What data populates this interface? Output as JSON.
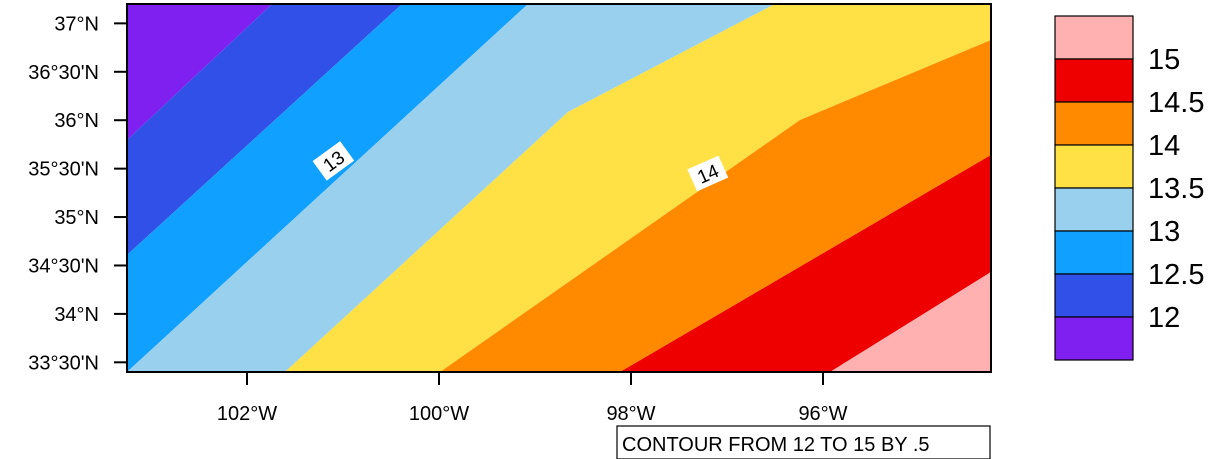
{
  "map": {
    "region": {
      "lon_min": -103.25,
      "lon_max": -94.25,
      "lat_min": 33.4,
      "lat_max": 37.2
    },
    "latitude_ticks": [
      {
        "lat": 37.0,
        "label": "37°N"
      },
      {
        "lat": 36.5,
        "label": "36°30'N"
      },
      {
        "lat": 36.0,
        "label": "36°N"
      },
      {
        "lat": 35.5,
        "label": "35°30'N"
      },
      {
        "lat": 35.0,
        "label": "35°N"
      },
      {
        "lat": 34.5,
        "label": "34°30'N"
      },
      {
        "lat": 34.0,
        "label": "34°N"
      },
      {
        "lat": 33.5,
        "label": "33°30'N"
      }
    ],
    "longitude_ticks": [
      {
        "lon": -102,
        "label": "102°W"
      },
      {
        "lon": -100,
        "label": "100°W"
      },
      {
        "lon": -98,
        "label": "98°W"
      },
      {
        "lon": -96,
        "label": "96°W"
      }
    ],
    "contour_labels": [
      {
        "text": "13",
        "value": 13,
        "lon": -101.1,
        "lat": 35.58,
        "rotation_deg": -36
      },
      {
        "text": "14",
        "value": 14,
        "lon": -97.2,
        "lat": 35.45,
        "rotation_deg": -24
      }
    ],
    "footer": "CONTOUR FROM 12 TO 15 BY .5"
  },
  "legend": {
    "labels": [
      "15",
      "14.5",
      "14",
      "13.5",
      "13",
      "12.5",
      "12"
    ],
    "bins": [
      {
        "range": ">15",
        "color": "#ffb0b0"
      },
      {
        "range": "14.5-15",
        "color": "#ee0000"
      },
      {
        "range": "14-14.5",
        "color": "#ff8a00"
      },
      {
        "range": "13.5-14",
        "color": "#ffe045"
      },
      {
        "range": "13-13.5",
        "color": "#98d0ee"
      },
      {
        "range": "12.5-13",
        "color": "#10a0ff"
      },
      {
        "range": "12-12.5",
        "color": "#3050e8"
      },
      {
        "range": "<12",
        "color": "#8020f0"
      }
    ]
  }
}
